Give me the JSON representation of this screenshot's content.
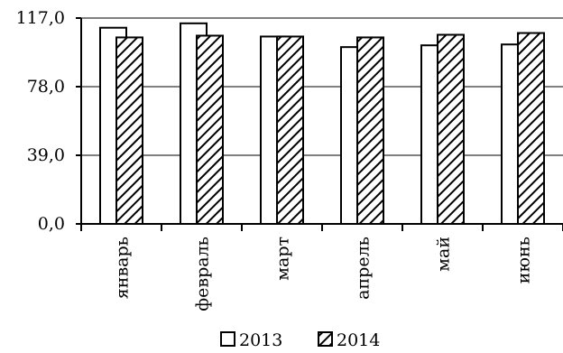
{
  "chart_data": {
    "type": "bar",
    "categories": [
      "январь",
      "февраль",
      "март",
      "апрель",
      "май",
      "июнь"
    ],
    "series": [
      {
        "name": "2013",
        "values": [
          111.5,
          114.0,
          106.5,
          100.5,
          101.5,
          102.0
        ]
      },
      {
        "name": "2014",
        "values": [
          106.0,
          107.0,
          106.5,
          106.0,
          107.5,
          108.5
        ]
      }
    ],
    "title": "",
    "xlabel": "",
    "ylabel": "",
    "ylim": [
      0,
      117
    ],
    "yticks": [
      "0,0",
      "39,0",
      "78,0",
      "117,0"
    ],
    "ytick_values": [
      0,
      39,
      78,
      117
    ],
    "grid": true,
    "legend": "bottom",
    "colors": {
      "series_2013_fill": "#ffffff",
      "series_2014_fill": "hatched",
      "stroke": "#000000",
      "grid": "#000000"
    }
  }
}
